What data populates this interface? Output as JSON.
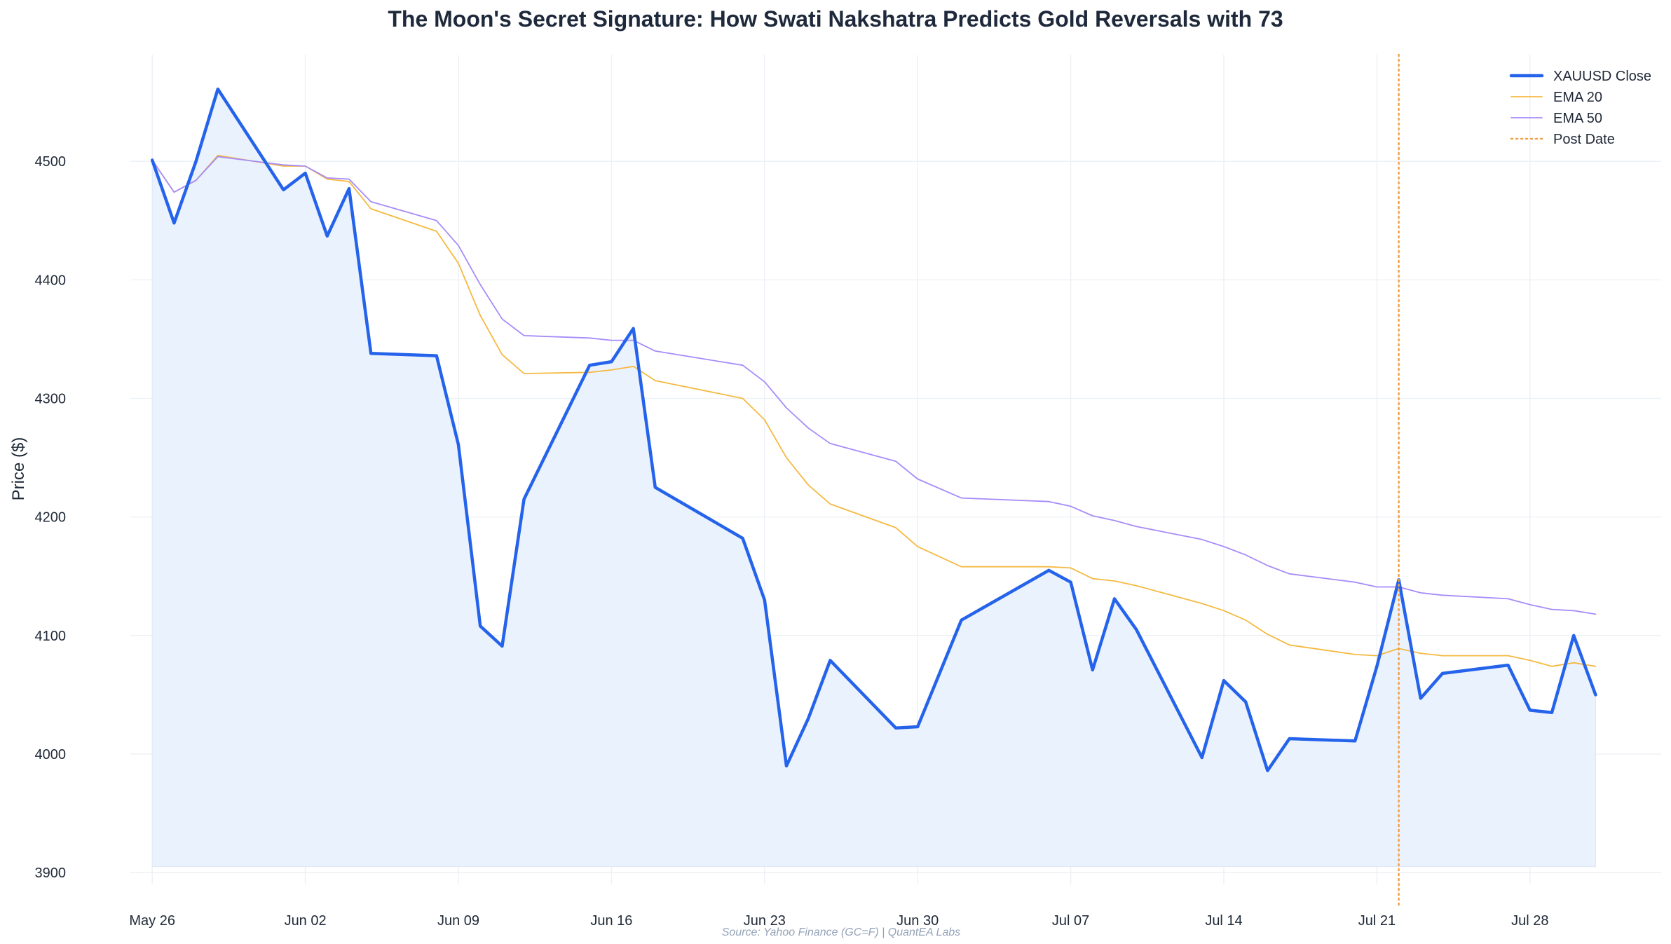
{
  "chart_data": {
    "type": "line",
    "title": "The Moon's Secret Signature: How Swati Nakshatra Predicts Gold Reversals with 73",
    "xlabel": "",
    "ylabel": "Price ($)",
    "ylim": [
      3890,
      4590
    ],
    "x_range": [
      "2025-05-25",
      "2025-08-03"
    ],
    "x_ticks": [
      {
        "date": "2025-05-26",
        "label": "May 26"
      },
      {
        "date": "2025-06-02",
        "label": "Jun 02"
      },
      {
        "date": "2025-06-09",
        "label": "Jun 09"
      },
      {
        "date": "2025-06-16",
        "label": "Jun 16"
      },
      {
        "date": "2025-06-23",
        "label": "Jun 23"
      },
      {
        "date": "2025-06-30",
        "label": "Jun 30"
      },
      {
        "date": "2025-07-07",
        "label": "Jul 07"
      },
      {
        "date": "2025-07-14",
        "label": "Jul 14"
      },
      {
        "date": "2025-07-21",
        "label": "Jul 21"
      },
      {
        "date": "2025-07-28",
        "label": "Jul 28"
      }
    ],
    "y_ticks": [
      3900,
      4000,
      4100,
      4200,
      4300,
      4400,
      4500
    ],
    "grid": true,
    "legend_position": "top-right",
    "fill_baseline": 3905,
    "dates": [
      "2025-05-26",
      "2025-05-27",
      "2025-05-28",
      "2025-05-29",
      "2025-06-01",
      "2025-06-02",
      "2025-06-03",
      "2025-06-04",
      "2025-06-05",
      "2025-06-08",
      "2025-06-09",
      "2025-06-10",
      "2025-06-11",
      "2025-06-12",
      "2025-06-15",
      "2025-06-16",
      "2025-06-17",
      "2025-06-18",
      "2025-06-22",
      "2025-06-23",
      "2025-06-24",
      "2025-06-25",
      "2025-06-26",
      "2025-06-29",
      "2025-06-30",
      "2025-07-02",
      "2025-07-06",
      "2025-07-07",
      "2025-07-08",
      "2025-07-09",
      "2025-07-10",
      "2025-07-13",
      "2025-07-14",
      "2025-07-15",
      "2025-07-16",
      "2025-07-17",
      "2025-07-20",
      "2025-07-21",
      "2025-07-22",
      "2025-07-23",
      "2025-07-24",
      "2025-07-27",
      "2025-07-28",
      "2025-07-29",
      "2025-07-30",
      "2025-07-31"
    ],
    "series": [
      {
        "name": "XAUUSD Close",
        "color": "#2563eb",
        "style": "solid",
        "values": [
          4501,
          4448,
          4500,
          4561,
          4476,
          4490,
          4437,
          4477,
          4338,
          4336,
          4261,
          4108,
          4091,
          4215,
          4328,
          4331,
          4359,
          4225,
          4182,
          4130,
          3990,
          4030,
          4079,
          4022,
          4023,
          4113,
          4155,
          4145,
          4071,
          4131,
          4105,
          3997,
          4062,
          4044,
          3986,
          4013,
          4011,
          4074,
          4147,
          4047,
          4068,
          4075,
          4037,
          4035,
          4100,
          4050
        ]
      },
      {
        "name": "EMA 20",
        "color": "#f5b942",
        "style": "solid",
        "values": [
          4501,
          4474,
          4484,
          4505,
          4496,
          4496,
          4485,
          4483,
          4460,
          4441,
          4414,
          4370,
          4337,
          4321,
          4322,
          4324,
          4327,
          4315,
          4300,
          4282,
          4250,
          4227,
          4211,
          4191,
          4175,
          4158,
          4158,
          4157,
          4148,
          4146,
          4142,
          4127,
          4121,
          4113,
          4101,
          4092,
          4084,
          4083,
          4089,
          4085,
          4083,
          4083,
          4079,
          4074,
          4077,
          4074
        ]
      },
      {
        "name": "EMA 50",
        "color": "#a78bfa",
        "style": "solid",
        "values": [
          4501,
          4474,
          4484,
          4504,
          4497,
          4496,
          4486,
          4485,
          4466,
          4450,
          4429,
          4396,
          4367,
          4353,
          4351,
          4349,
          4349,
          4340,
          4328,
          4314,
          4292,
          4275,
          4262,
          4247,
          4232,
          4216,
          4213,
          4209,
          4201,
          4197,
          4192,
          4181,
          4175,
          4168,
          4159,
          4152,
          4145,
          4141,
          4141,
          4136,
          4134,
          4131,
          4126,
          4122,
          4121,
          4118
        ]
      }
    ],
    "vline": {
      "name": "Post Date",
      "date": "2025-07-22",
      "color": "#f59e42",
      "style": "dotted"
    },
    "source": "Source: Yahoo Finance (GC=F) | QuantEA Labs"
  }
}
